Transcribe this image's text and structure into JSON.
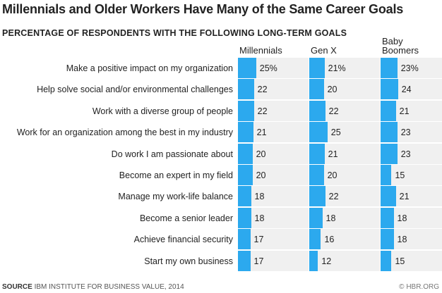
{
  "chart_data": {
    "type": "bar",
    "title": "Millennials and Older Workers Have Many of the Same Career Goals",
    "subtitle": "PERCENTAGE OF RESPONDENTS WITH THE FOLLOWING LONG-TERM GOALS",
    "categories": [
      "Make a positive impact on my organization",
      "Help solve social and/or environmental challenges",
      "Work with a diverse group of people",
      "Work for an organization among the best in my industry",
      "Do work I am passionate about",
      "Become an expert in my field",
      "Manage my work-life balance",
      "Become a senior leader",
      "Achieve financial security",
      "Start my own business"
    ],
    "series": [
      {
        "name": "Millennials",
        "values": [
          25,
          22,
          22,
          21,
          20,
          20,
          18,
          18,
          17,
          17
        ]
      },
      {
        "name": "Gen X",
        "values": [
          21,
          20,
          22,
          25,
          21,
          20,
          22,
          18,
          16,
          12
        ]
      },
      {
        "name": "Baby Boomers",
        "values": [
          23,
          24,
          21,
          23,
          23,
          15,
          21,
          18,
          18,
          15
        ]
      }
    ],
    "unit": "%",
    "colors": {
      "bar": "#2ca9ee",
      "background": "#f0f0f0"
    }
  },
  "footer": {
    "source_label": "SOURCE",
    "source": "IBM INSTITUTE FOR BUSINESS VALUE, 2014",
    "credit": "© HBR.ORG"
  }
}
